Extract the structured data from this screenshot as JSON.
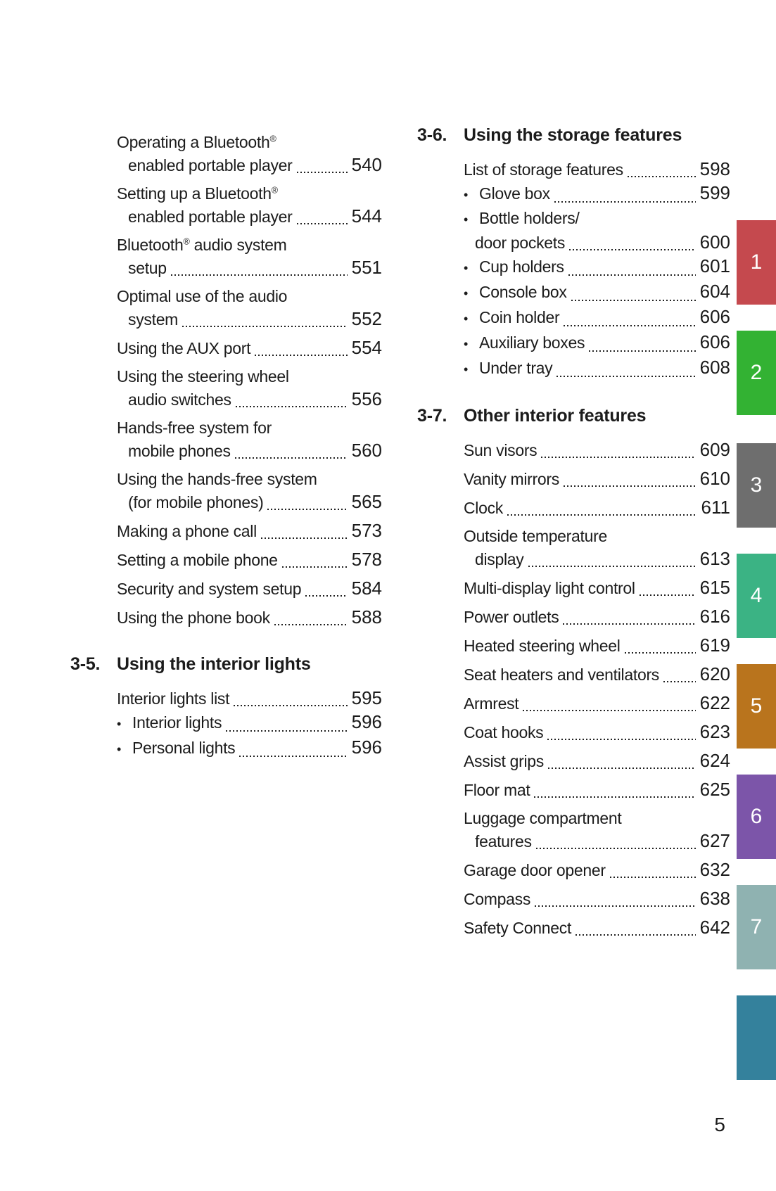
{
  "page": {
    "number": "5"
  },
  "tabs": [
    {
      "label": "1",
      "color": "#c5494e"
    },
    {
      "label": "2",
      "color": "#33b233"
    },
    {
      "label": "3",
      "color": "#6e6e6e"
    },
    {
      "label": "4",
      "color": "#3bb384"
    },
    {
      "label": "5",
      "color": "#b9741d"
    },
    {
      "label": "6",
      "color": "#7c55a9"
    },
    {
      "label": "7",
      "color": "#8fb2b1"
    },
    {
      "label": "",
      "color": "#34819c"
    }
  ],
  "left_column": [
    {
      "type": "entries",
      "tight": false,
      "items": [
        {
          "lines": [
            "Operating a Bluetooth®",
            "enabled portable player"
          ],
          "page": "540"
        },
        {
          "lines": [
            "Setting up a Bluetooth®",
            "enabled portable player"
          ],
          "page": "544"
        },
        {
          "lines": [
            "Bluetooth® audio system",
            "setup"
          ],
          "page": "551"
        },
        {
          "lines": [
            "Optimal use of the audio",
            "system"
          ],
          "page": "552"
        },
        {
          "lines": [
            "Using the AUX port"
          ],
          "page": "554"
        },
        {
          "lines": [
            "Using the steering wheel",
            "audio switches"
          ],
          "page": "556"
        },
        {
          "lines": [
            "Hands-free system for",
            "mobile phones"
          ],
          "page": "560"
        },
        {
          "lines": [
            "Using the hands-free system",
            "(for mobile phones)"
          ],
          "page": "565"
        },
        {
          "lines": [
            "Making a phone call"
          ],
          "page": "573"
        },
        {
          "lines": [
            "Setting a mobile phone"
          ],
          "page": "578"
        },
        {
          "lines": [
            "Security and system setup"
          ],
          "page": "584"
        },
        {
          "lines": [
            "Using the phone book"
          ],
          "page": "588"
        }
      ]
    },
    {
      "type": "section",
      "number": "3-5.",
      "title": "Using the interior lights"
    },
    {
      "type": "entries",
      "tight": true,
      "items": [
        {
          "lines": [
            "Interior lights list"
          ],
          "page": "595"
        },
        {
          "bullet": "•",
          "lines": [
            "Interior lights"
          ],
          "page": "596"
        },
        {
          "bullet": "•",
          "lines": [
            "Personal lights"
          ],
          "page": "596"
        }
      ]
    }
  ],
  "right_column": [
    {
      "type": "section",
      "number": "3-6.",
      "title": "Using the storage features"
    },
    {
      "type": "entries",
      "tight": true,
      "items": [
        {
          "lines": [
            "List of storage features"
          ],
          "page": "598"
        },
        {
          "bullet": "•",
          "lines": [
            "Glove box"
          ],
          "page": "599"
        },
        {
          "bullet": "•",
          "lines": [
            "Bottle holders/",
            "door pockets"
          ],
          "page": "600"
        },
        {
          "bullet": "•",
          "lines": [
            "Cup holders"
          ],
          "page": "601"
        },
        {
          "bullet": "•",
          "lines": [
            "Console box"
          ],
          "page": "604"
        },
        {
          "bullet": "•",
          "lines": [
            "Coin holder"
          ],
          "page": "606"
        },
        {
          "bullet": "•",
          "lines": [
            "Auxiliary boxes"
          ],
          "page": "606"
        },
        {
          "bullet": "•",
          "lines": [
            "Under tray"
          ],
          "page": "608"
        }
      ]
    },
    {
      "type": "section",
      "number": "3-7.",
      "title": "Other interior features"
    },
    {
      "type": "entries",
      "tight": false,
      "items": [
        {
          "lines": [
            "Sun visors"
          ],
          "page": "609"
        },
        {
          "lines": [
            "Vanity mirrors"
          ],
          "page": "610"
        },
        {
          "lines": [
            "Clock"
          ],
          "page": "611"
        },
        {
          "lines": [
            "Outside temperature",
            "display"
          ],
          "page": "613"
        },
        {
          "lines": [
            "Multi-display light control"
          ],
          "page": "615"
        },
        {
          "lines": [
            "Power outlets"
          ],
          "page": "616"
        },
        {
          "lines": [
            "Heated steering wheel"
          ],
          "page": "619"
        },
        {
          "lines": [
            "Seat heaters and ventilators"
          ],
          "page": "620"
        },
        {
          "lines": [
            "Armrest"
          ],
          "page": "622"
        },
        {
          "lines": [
            "Coat hooks"
          ],
          "page": "623"
        },
        {
          "lines": [
            "Assist grips"
          ],
          "page": "624"
        },
        {
          "lines": [
            "Floor mat"
          ],
          "page": "625"
        },
        {
          "lines": [
            "Luggage compartment",
            "features"
          ],
          "page": "627"
        },
        {
          "lines": [
            "Garage door opener"
          ],
          "page": "632"
        },
        {
          "lines": [
            "Compass"
          ],
          "page": "638"
        },
        {
          "lines": [
            "Safety Connect"
          ],
          "page": "642"
        }
      ]
    }
  ]
}
